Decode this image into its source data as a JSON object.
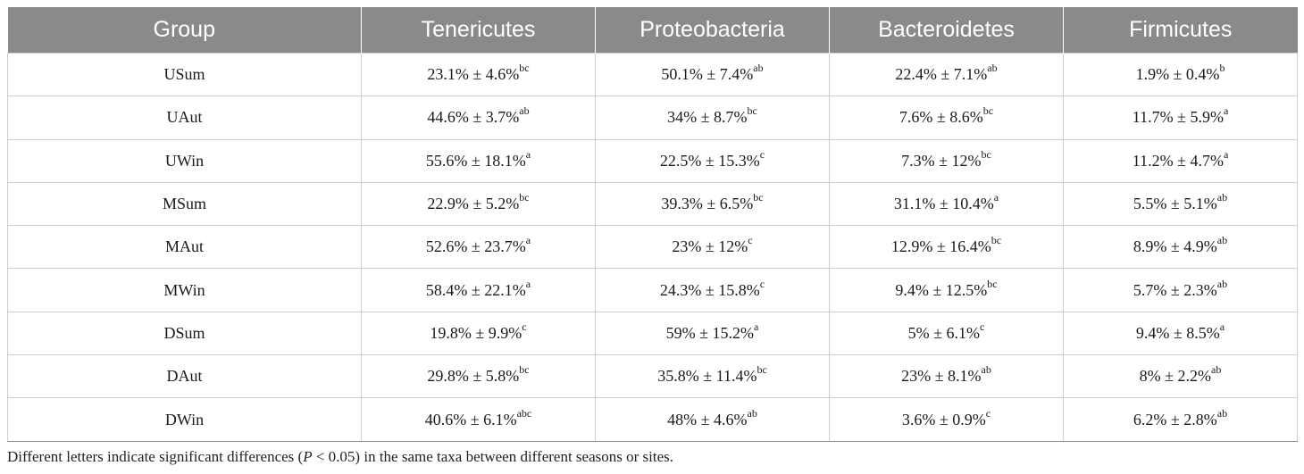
{
  "table": {
    "headers": [
      "Group",
      "Tenericutes",
      "Proteobacteria",
      "Bacteroidetes",
      "Firmicutes"
    ],
    "rows": [
      {
        "group": "USum",
        "cells": [
          {
            "value": "23.1% ± 4.6%",
            "sig": "bc"
          },
          {
            "value": "50.1% ± 7.4%",
            "sig": "ab"
          },
          {
            "value": "22.4% ± 7.1%",
            "sig": "ab"
          },
          {
            "value": "1.9% ± 0.4%",
            "sig": "b"
          }
        ]
      },
      {
        "group": "UAut",
        "cells": [
          {
            "value": "44.6% ± 3.7%",
            "sig": "ab"
          },
          {
            "value": "34% ± 8.7%",
            "sig": "bc"
          },
          {
            "value": "7.6% ± 8.6%",
            "sig": "bc"
          },
          {
            "value": "11.7% ± 5.9%",
            "sig": "a"
          }
        ]
      },
      {
        "group": "UWin",
        "cells": [
          {
            "value": "55.6% ± 18.1%",
            "sig": "a"
          },
          {
            "value": "22.5% ± 15.3%",
            "sig": "c"
          },
          {
            "value": "7.3% ± 12%",
            "sig": "bc"
          },
          {
            "value": "11.2% ± 4.7%",
            "sig": "a"
          }
        ]
      },
      {
        "group": "MSum",
        "cells": [
          {
            "value": "22.9% ± 5.2%",
            "sig": "bc"
          },
          {
            "value": "39.3% ± 6.5%",
            "sig": "bc"
          },
          {
            "value": "31.1% ± 10.4%",
            "sig": "a"
          },
          {
            "value": "5.5% ± 5.1%",
            "sig": "ab"
          }
        ]
      },
      {
        "group": "MAut",
        "cells": [
          {
            "value": "52.6% ± 23.7%",
            "sig": "a"
          },
          {
            "value": "23% ± 12%",
            "sig": "c"
          },
          {
            "value": "12.9% ± 16.4%",
            "sig": "bc"
          },
          {
            "value": "8.9% ± 4.9%",
            "sig": "ab"
          }
        ]
      },
      {
        "group": "MWin",
        "cells": [
          {
            "value": "58.4% ± 22.1%",
            "sig": "a"
          },
          {
            "value": "24.3% ± 15.8%",
            "sig": "c"
          },
          {
            "value": "9.4% ± 12.5%",
            "sig": "bc"
          },
          {
            "value": "5.7% ± 2.3%",
            "sig": "ab"
          }
        ]
      },
      {
        "group": "DSum",
        "cells": [
          {
            "value": "19.8% ± 9.9%",
            "sig": "c"
          },
          {
            "value": "59% ± 15.2%",
            "sig": "a"
          },
          {
            "value": "5% ± 6.1%",
            "sig": "c"
          },
          {
            "value": "9.4% ± 8.5%",
            "sig": "a"
          }
        ]
      },
      {
        "group": "DAut",
        "cells": [
          {
            "value": "29.8% ± 5.8%",
            "sig": "bc"
          },
          {
            "value": "35.8% ± 11.4%",
            "sig": "bc"
          },
          {
            "value": "23% ± 8.1%",
            "sig": "ab"
          },
          {
            "value": "8% ± 2.2%",
            "sig": "ab"
          }
        ]
      },
      {
        "group": "DWin",
        "cells": [
          {
            "value": "40.6% ± 6.1%",
            "sig": "abc"
          },
          {
            "value": "48% ± 4.6%",
            "sig": "ab"
          },
          {
            "value": "3.6% ± 0.9%",
            "sig": "c"
          },
          {
            "value": "6.2% ± 2.8%",
            "sig": "ab"
          }
        ]
      }
    ]
  },
  "footnote": {
    "before": "Different letters indicate significant differences (",
    "p": "P",
    "after": " < 0.05) in the same taxa between different seasons or sites."
  }
}
